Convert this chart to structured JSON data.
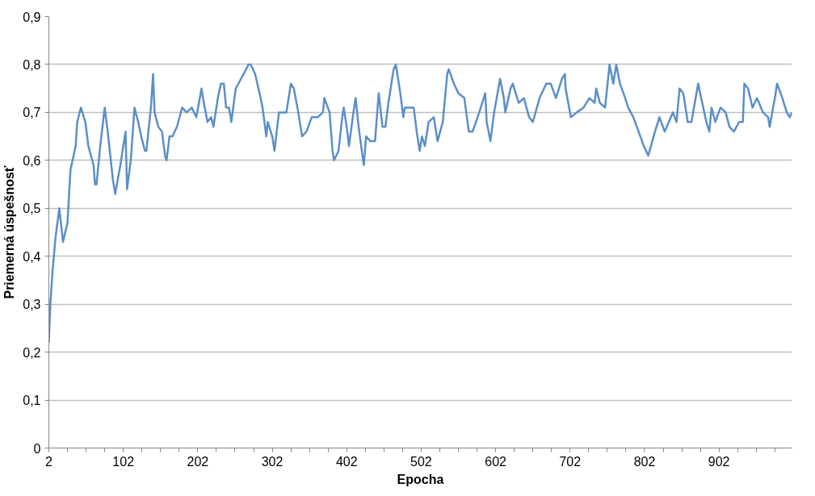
{
  "chart_data": {
    "type": "line",
    "xlabel": "Epocha",
    "ylabel": "Priemerná úspešnosť",
    "x": [
      2,
      4,
      7,
      11,
      16,
      21,
      27,
      31,
      38,
      40,
      45,
      51,
      55,
      62,
      64,
      66,
      71,
      77,
      81,
      88,
      91,
      98,
      103,
      105,
      107,
      112,
      117,
      122,
      126,
      131,
      133,
      139,
      142,
      144,
      149,
      154,
      158,
      160,
      164,
      168,
      174,
      181,
      187,
      194,
      200,
      207,
      209,
      215,
      220,
      223,
      229,
      233,
      237,
      240,
      244,
      247,
      253,
      260,
      267,
      270,
      273,
      279,
      285,
      289,
      294,
      296,
      302,
      305,
      311,
      316,
      321,
      327,
      331,
      337,
      342,
      348,
      355,
      363,
      370,
      372,
      379,
      383,
      385,
      391,
      396,
      398,
      402,
      405,
      411,
      414,
      418,
      424,
      425,
      428,
      434,
      440,
      445,
      450,
      454,
      458,
      465,
      468,
      474,
      478,
      480,
      492,
      496,
      500,
      503,
      507,
      512,
      519,
      524,
      531,
      537,
      539,
      546,
      552,
      560,
      566,
      571,
      580,
      588,
      590,
      595,
      600,
      608,
      613,
      615,
      622,
      625,
      633,
      640,
      647,
      652,
      661,
      670,
      676,
      683,
      691,
      695,
      696,
      703,
      711,
      720,
      728,
      735,
      737,
      742,
      749,
      755,
      760,
      764,
      769,
      776,
      780,
      787,
      794,
      801,
      807,
      816,
      822,
      829,
      840,
      845,
      849,
      854,
      860,
      865,
      874,
      878,
      885,
      889,
      892,
      897,
      904,
      911,
      916,
      922,
      929,
      934,
      936,
      941,
      947,
      953,
      961,
      968,
      970,
      977,
      980,
      987,
      993,
      997,
      1000
    ],
    "series": [
      {
        "color": "#5b8fc9",
        "values": [
          0.22,
          0.3,
          0.37,
          0.44,
          0.5,
          0.43,
          0.47,
          0.58,
          0.63,
          0.68,
          0.71,
          0.68,
          0.63,
          0.59,
          0.55,
          0.55,
          0.63,
          0.71,
          0.66,
          0.56,
          0.53,
          0.59,
          0.64,
          0.66,
          0.54,
          0.6,
          0.71,
          0.68,
          0.65,
          0.62,
          0.62,
          0.71,
          0.78,
          0.7,
          0.67,
          0.66,
          0.61,
          0.6,
          0.65,
          0.65,
          0.67,
          0.71,
          0.7,
          0.71,
          0.69,
          0.75,
          0.73,
          0.68,
          0.69,
          0.67,
          0.73,
          0.76,
          0.76,
          0.71,
          0.71,
          0.68,
          0.75,
          0.77,
          0.79,
          0.8,
          0.8,
          0.78,
          0.74,
          0.71,
          0.65,
          0.68,
          0.65,
          0.62,
          0.7,
          0.7,
          0.7,
          0.76,
          0.75,
          0.7,
          0.65,
          0.66,
          0.69,
          0.69,
          0.7,
          0.73,
          0.7,
          0.62,
          0.6,
          0.62,
          0.69,
          0.71,
          0.67,
          0.63,
          0.7,
          0.73,
          0.67,
          0.6,
          0.59,
          0.65,
          0.64,
          0.64,
          0.74,
          0.67,
          0.67,
          0.72,
          0.79,
          0.8,
          0.74,
          0.69,
          0.71,
          0.71,
          0.66,
          0.62,
          0.65,
          0.63,
          0.68,
          0.69,
          0.64,
          0.68,
          0.78,
          0.79,
          0.76,
          0.74,
          0.73,
          0.66,
          0.66,
          0.7,
          0.74,
          0.68,
          0.64,
          0.7,
          0.77,
          0.73,
          0.7,
          0.75,
          0.76,
          0.72,
          0.73,
          0.69,
          0.68,
          0.73,
          0.76,
          0.76,
          0.73,
          0.77,
          0.78,
          0.75,
          0.69,
          0.7,
          0.71,
          0.73,
          0.72,
          0.75,
          0.72,
          0.71,
          0.8,
          0.76,
          0.8,
          0.76,
          0.73,
          0.71,
          0.69,
          0.66,
          0.63,
          0.61,
          0.66,
          0.69,
          0.66,
          0.7,
          0.68,
          0.75,
          0.74,
          0.68,
          0.68,
          0.76,
          0.73,
          0.68,
          0.66,
          0.71,
          0.68,
          0.71,
          0.7,
          0.67,
          0.66,
          0.68,
          0.68,
          0.76,
          0.75,
          0.71,
          0.73,
          0.7,
          0.69,
          0.67,
          0.73,
          0.76,
          0.73,
          0.7,
          0.69,
          0.7
        ]
      }
    ],
    "xlim": [
      2,
      1000
    ],
    "xticks": [
      2,
      {
        "value": 27,
        "label": null
      },
      {
        "value": 52,
        "label": null
      },
      {
        "value": 77,
        "label": null
      },
      102,
      {
        "value": 127,
        "label": null
      },
      {
        "value": 152,
        "label": null
      },
      {
        "value": 177,
        "label": null
      },
      202,
      {
        "value": 227,
        "label": null
      },
      {
        "value": 252,
        "label": null
      },
      {
        "value": 277,
        "label": null
      },
      302,
      {
        "value": 327,
        "label": null
      },
      {
        "value": 352,
        "label": null
      },
      {
        "value": 377,
        "label": null
      },
      402,
      {
        "value": 427,
        "label": null
      },
      {
        "value": 452,
        "label": null
      },
      {
        "value": 477,
        "label": null
      },
      502,
      {
        "value": 527,
        "label": null
      },
      {
        "value": 552,
        "label": null
      },
      {
        "value": 577,
        "label": null
      },
      602,
      {
        "value": 627,
        "label": null
      },
      {
        "value": 652,
        "label": null
      },
      {
        "value": 677,
        "label": null
      },
      702,
      {
        "value": 727,
        "label": null
      },
      {
        "value": 752,
        "label": null
      },
      {
        "value": 777,
        "label": null
      },
      802,
      {
        "value": 827,
        "label": null
      },
      {
        "value": 852,
        "label": null
      },
      {
        "value": 877,
        "label": null
      },
      902,
      {
        "value": 927,
        "label": null
      },
      {
        "value": 952,
        "label": null
      },
      {
        "value": 977,
        "label": null
      }
    ],
    "ylim": [
      0,
      0.9
    ],
    "yticks": [
      0,
      {
        "value": 0.1,
        "label": "0,1"
      },
      {
        "value": 0.2,
        "label": "0,2"
      },
      {
        "value": 0.3,
        "label": "0,3"
      },
      {
        "value": 0.4,
        "label": "0,4"
      },
      {
        "value": 0.5,
        "label": "0,5"
      },
      {
        "value": 0.6,
        "label": "0,6"
      },
      {
        "value": 0.7,
        "label": "0,7"
      },
      {
        "value": 0.8,
        "label": "0,8"
      },
      {
        "value": 0.9,
        "label": "0,9"
      }
    ],
    "grid": "y",
    "marker": "none",
    "line_style": "solid"
  }
}
